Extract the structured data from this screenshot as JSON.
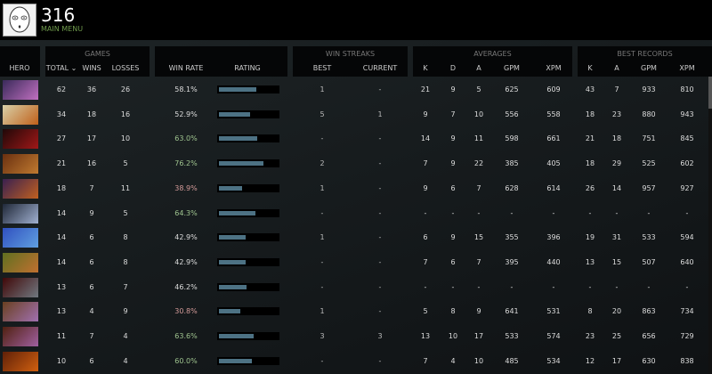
{
  "header": {
    "title": "316",
    "main_menu": "MAIN MENU"
  },
  "groups": {
    "games": "GAMES",
    "win_streaks": "WIN STREAKS",
    "averages": "AVERAGES",
    "best_records": "BEST RECORDS"
  },
  "columns": {
    "hero": "HERO",
    "total": "TOTAL ⌄",
    "wins": "WINS",
    "losses": "LOSSES",
    "win_rate": "WIN RATE",
    "rating": "RATING",
    "best": "BEST",
    "current": "CURRENT",
    "avg_k": "K",
    "avg_d": "D",
    "avg_a": "A",
    "avg_gpm": "GPM",
    "avg_xpm": "XPM",
    "rec_k": "K",
    "rec_a": "A",
    "rec_gpm": "GPM",
    "rec_xpm": "XPM"
  },
  "colors": {
    "positive": "#9fc48f",
    "negative": "#d39a98",
    "neutral": "#dddddd",
    "bar": "#4d7284"
  },
  "rows": [
    {
      "portrait": [
        "#3a2a5a",
        "#c070c0"
      ],
      "total": "62",
      "wins": "36",
      "losses": "26",
      "win_rate": "58.1%",
      "tone": "neutral",
      "rating": 0.63,
      "best": "1",
      "current": "-",
      "k": "21",
      "d": "9",
      "a": "5",
      "gpm": "625",
      "xpm": "609",
      "rk": "43",
      "ra": "7",
      "rgpm": "933",
      "rxpm": "810"
    },
    {
      "portrait": [
        "#d8d0a8",
        "#c0601a"
      ],
      "total": "34",
      "wins": "18",
      "losses": "16",
      "win_rate": "52.9%",
      "tone": "neutral",
      "rating": 0.53,
      "best": "5",
      "current": "1",
      "k": "9",
      "d": "7",
      "a": "10",
      "gpm": "556",
      "xpm": "558",
      "rk": "18",
      "ra": "23",
      "rgpm": "880",
      "rxpm": "943"
    },
    {
      "portrait": [
        "#200808",
        "#a01818"
      ],
      "total": "27",
      "wins": "17",
      "losses": "10",
      "win_rate": "63.0%",
      "tone": "positive",
      "rating": 0.65,
      "best": "-",
      "current": "-",
      "k": "14",
      "d": "9",
      "a": "11",
      "gpm": "598",
      "xpm": "661",
      "rk": "21",
      "ra": "18",
      "rgpm": "751",
      "rxpm": "845"
    },
    {
      "portrait": [
        "#6a3010",
        "#c07a30"
      ],
      "total": "21",
      "wins": "16",
      "losses": "5",
      "win_rate": "76.2%",
      "tone": "positive",
      "rating": 0.76,
      "best": "2",
      "current": "-",
      "k": "7",
      "d": "9",
      "a": "22",
      "gpm": "385",
      "xpm": "405",
      "rk": "18",
      "ra": "29",
      "rgpm": "525",
      "rxpm": "602"
    },
    {
      "portrait": [
        "#3a2050",
        "#c06020"
      ],
      "total": "18",
      "wins": "7",
      "losses": "11",
      "win_rate": "38.9%",
      "tone": "negative",
      "rating": 0.39,
      "best": "1",
      "current": "-",
      "k": "9",
      "d": "6",
      "a": "7",
      "gpm": "628",
      "xpm": "614",
      "rk": "26",
      "ra": "14",
      "rgpm": "957",
      "rxpm": "927"
    },
    {
      "portrait": [
        "#202838",
        "#a0b0d0"
      ],
      "total": "14",
      "wins": "9",
      "losses": "5",
      "win_rate": "64.3%",
      "tone": "positive",
      "rating": 0.62,
      "best": "-",
      "current": "-",
      "k": "-",
      "d": "-",
      "a": "-",
      "gpm": "-",
      "xpm": "-",
      "rk": "-",
      "ra": "-",
      "rgpm": "-",
      "rxpm": "-"
    },
    {
      "portrait": [
        "#3050c0",
        "#60a0e0"
      ],
      "total": "14",
      "wins": "6",
      "losses": "8",
      "win_rate": "42.9%",
      "tone": "neutral",
      "rating": 0.45,
      "best": "1",
      "current": "-",
      "k": "6",
      "d": "9",
      "a": "15",
      "gpm": "355",
      "xpm": "396",
      "rk": "19",
      "ra": "31",
      "rgpm": "533",
      "rxpm": "594"
    },
    {
      "portrait": [
        "#607020",
        "#c07030"
      ],
      "total": "14",
      "wins": "6",
      "losses": "8",
      "win_rate": "42.9%",
      "tone": "neutral",
      "rating": 0.45,
      "best": "-",
      "current": "-",
      "k": "7",
      "d": "6",
      "a": "7",
      "gpm": "395",
      "xpm": "440",
      "rk": "13",
      "ra": "15",
      "rgpm": "507",
      "rxpm": "640"
    },
    {
      "portrait": [
        "#400808",
        "#707880"
      ],
      "total": "13",
      "wins": "6",
      "losses": "7",
      "win_rate": "46.2%",
      "tone": "neutral",
      "rating": 0.47,
      "best": "-",
      "current": "-",
      "k": "-",
      "d": "-",
      "a": "-",
      "gpm": "-",
      "xpm": "-",
      "rk": "-",
      "ra": "-",
      "rgpm": "-",
      "rxpm": "-"
    },
    {
      "portrait": [
        "#6a4020",
        "#a070b0"
      ],
      "total": "13",
      "wins": "4",
      "losses": "9",
      "win_rate": "30.8%",
      "tone": "negative",
      "rating": 0.36,
      "best": "1",
      "current": "-",
      "k": "5",
      "d": "8",
      "a": "9",
      "gpm": "641",
      "xpm": "531",
      "rk": "8",
      "ra": "20",
      "rgpm": "863",
      "rxpm": "734"
    },
    {
      "portrait": [
        "#502010",
        "#a060a0"
      ],
      "total": "11",
      "wins": "7",
      "losses": "4",
      "win_rate": "63.6%",
      "tone": "positive",
      "rating": 0.59,
      "best": "3",
      "current": "3",
      "k": "13",
      "d": "10",
      "a": "17",
      "gpm": "533",
      "xpm": "574",
      "rk": "23",
      "ra": "25",
      "rgpm": "656",
      "rxpm": "729"
    },
    {
      "portrait": [
        "#602008",
        "#d06010"
      ],
      "total": "10",
      "wins": "6",
      "losses": "4",
      "win_rate": "60.0%",
      "tone": "positive",
      "rating": 0.56,
      "best": "-",
      "current": "-",
      "k": "7",
      "d": "4",
      "a": "10",
      "gpm": "485",
      "xpm": "534",
      "rk": "12",
      "ra": "17",
      "rgpm": "630",
      "rxpm": "838"
    }
  ]
}
